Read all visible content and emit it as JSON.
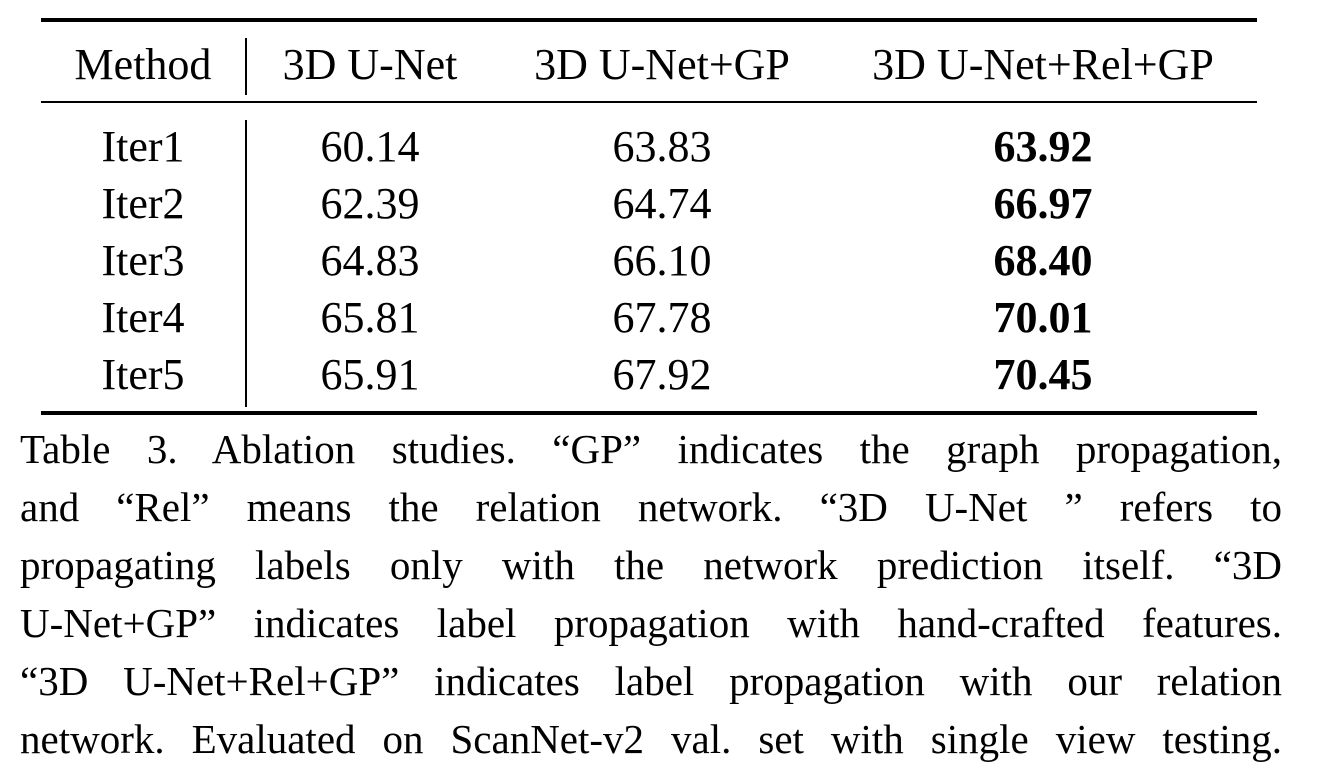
{
  "table": {
    "header": [
      "Method",
      "3D U-Net",
      "3D U-Net+GP",
      "3D U-Net+Rel+GP"
    ],
    "rows": [
      {
        "method": "Iter1",
        "unet": "60.14",
        "unet_gp": "63.83",
        "unet_rel_gp": "63.92"
      },
      {
        "method": "Iter2",
        "unet": "62.39",
        "unet_gp": "64.74",
        "unet_rel_gp": "66.97"
      },
      {
        "method": "Iter3",
        "unet": "64.83",
        "unet_gp": "66.10",
        "unet_rel_gp": "68.40"
      },
      {
        "method": "Iter4",
        "unet": "65.81",
        "unet_gp": "67.78",
        "unet_rel_gp": "70.01"
      },
      {
        "method": "Iter5",
        "unet": "65.91",
        "unet_gp": "67.92",
        "unet_rel_gp": "70.45"
      }
    ]
  },
  "caption": {
    "lines": [
      "Table 3. Ablation studies. “GP” indicates the graph propagation,",
      "and “Rel” means the relation network. “3D U-Net ” refers to",
      "propagating labels only with the network prediction itself. “3D",
      "U-Net+GP” indicates label propagation with hand-crafted features.",
      "“3D U-Net+Rel+GP” indicates label propagation with our relation",
      "network. Evaluated on ScanNet-v2 val. set with single view testing."
    ]
  }
}
